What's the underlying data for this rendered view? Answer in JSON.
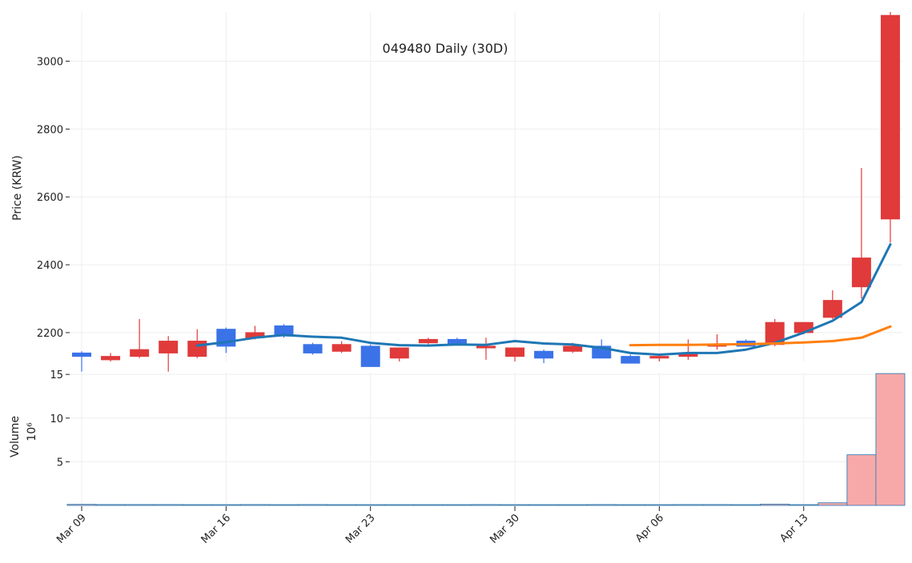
{
  "chart_data": [
    {
      "type": "candlestick",
      "title": "049480 Daily (30D)",
      "ylabel": "Price (KRW)",
      "ylim": [
        2115,
        3145
      ],
      "yticks": [
        2200,
        2400,
        2600,
        2800,
        3000
      ],
      "x_tick_labels": [
        "Mar 09",
        "Mar 16",
        "Mar 23",
        "Mar 30",
        "Apr 06",
        "Apr 13"
      ],
      "x_tick_days": [
        0,
        5,
        10,
        15,
        20,
        25
      ],
      "days": [
        0,
        1,
        2,
        3,
        4,
        5,
        6,
        7,
        8,
        9,
        10,
        11,
        12,
        13,
        14,
        15,
        16,
        17,
        18,
        19,
        20,
        21,
        22,
        23,
        24,
        25,
        26,
        27,
        28
      ],
      "ohlc": [
        [
          2140,
          2145,
          2085,
          2130
        ],
        [
          2120,
          2140,
          2115,
          2130
        ],
        [
          2130,
          2240,
          2125,
          2150
        ],
        [
          2140,
          2190,
          2085,
          2175
        ],
        [
          2130,
          2210,
          2125,
          2175
        ],
        [
          2210,
          2215,
          2140,
          2160
        ],
        [
          2185,
          2220,
          2180,
          2200
        ],
        [
          2220,
          2225,
          2185,
          2190
        ],
        [
          2165,
          2170,
          2135,
          2140
        ],
        [
          2145,
          2175,
          2140,
          2165
        ],
        [
          2160,
          2165,
          2100,
          2100
        ],
        [
          2125,
          2155,
          2115,
          2155
        ],
        [
          2170,
          2185,
          2165,
          2180
        ],
        [
          2180,
          2185,
          2165,
          2165
        ],
        [
          2155,
          2185,
          2120,
          2160
        ],
        [
          2130,
          2145,
          2115,
          2155
        ],
        [
          2145,
          2150,
          2110,
          2125
        ],
        [
          2145,
          2170,
          2140,
          2160
        ],
        [
          2160,
          2180,
          2125,
          2125
        ],
        [
          2130,
          2135,
          2110,
          2110
        ],
        [
          2125,
          2130,
          2115,
          2130
        ],
        [
          2130,
          2180,
          2120,
          2140
        ],
        [
          2160,
          2195,
          2150,
          2165
        ],
        [
          2175,
          2180,
          2160,
          2160
        ],
        [
          2165,
          2240,
          2160,
          2230
        ],
        [
          2200,
          2230,
          2195,
          2230
        ],
        [
          2245,
          2325,
          2240,
          2295
        ],
        [
          2335,
          2685,
          2300,
          2420
        ],
        [
          2535,
          3145,
          2465,
          3135
        ]
      ],
      "series": [
        {
          "name": "MA5",
          "color": "#1f77b4",
          "x": [
            4,
            5,
            6,
            7,
            8,
            9,
            10,
            11,
            12,
            13,
            14,
            15,
            16,
            17,
            18,
            19,
            20,
            21,
            22,
            23,
            24,
            25,
            26,
            27,
            28
          ],
          "values": [
            2162,
            2172,
            2185,
            2193,
            2188,
            2185,
            2170,
            2163,
            2162,
            2165,
            2164,
            2175,
            2168,
            2165,
            2155,
            2140,
            2135,
            2140,
            2140,
            2150,
            2170,
            2200,
            2235,
            2290,
            2460
          ]
        },
        {
          "name": "MA20",
          "color": "#ff7f0e",
          "x": [
            19,
            20,
            21,
            22,
            23,
            24,
            25,
            26,
            27,
            28
          ],
          "values": [
            2163,
            2164,
            2164,
            2165,
            2166,
            2168,
            2171,
            2175,
            2185,
            2218
          ]
        }
      ],
      "up_color": "#e03a3a",
      "down_color": "#3a72e8"
    },
    {
      "type": "bar",
      "ylabel": "Volume",
      "y_multiplier": "10⁶",
      "ylim": [
        0,
        15.2
      ],
      "yticks": [
        5,
        10,
        15
      ],
      "days": [
        0,
        1,
        2,
        3,
        4,
        5,
        6,
        7,
        8,
        9,
        10,
        11,
        12,
        13,
        14,
        15,
        16,
        17,
        18,
        19,
        20,
        21,
        22,
        23,
        24,
        25,
        26,
        27,
        28
      ],
      "values": [
        0.12,
        0.1,
        0.1,
        0.1,
        0.03,
        0.05,
        0.1,
        0.04,
        0.1,
        0.03,
        0.03,
        0.03,
        0.03,
        0.03,
        0.1,
        0.03,
        0.03,
        0.03,
        0.1,
        0.03,
        0.03,
        0.1,
        0.1,
        0.03,
        0.15,
        0.03,
        0.3,
        5.8,
        15.1
      ],
      "bar_color": "#f7a9a9",
      "edge_color": "#1f77b4"
    }
  ]
}
